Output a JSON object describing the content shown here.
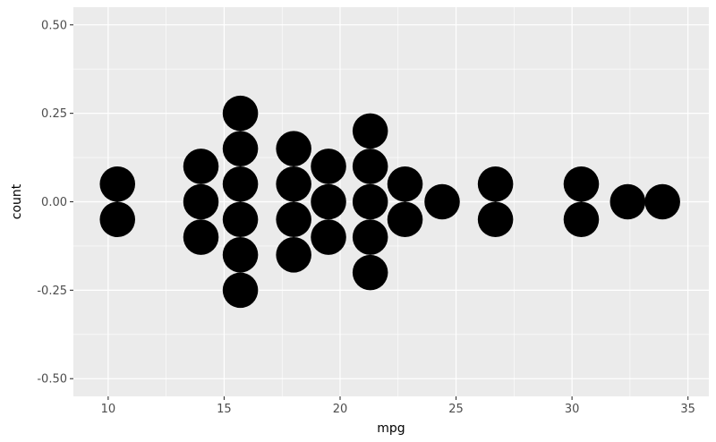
{
  "chart_data": {
    "type": "scatter",
    "subtype": "centered-dotplot",
    "title": "",
    "xlabel": "mpg",
    "ylabel": "count",
    "xlim": [
      8.5,
      35.9
    ],
    "ylim": [
      -0.55,
      0.55
    ],
    "x_ticks": [
      10,
      15,
      20,
      25,
      30,
      35
    ],
    "x_tick_labels": [
      "10",
      "15",
      "20",
      "25",
      "30",
      "35"
    ],
    "y_ticks": [
      -0.5,
      -0.25,
      0,
      0.25,
      0.5
    ],
    "y_tick_labels": [
      "-0.50",
      "-0.25",
      "0.00",
      "0.25",
      "0.50"
    ],
    "grid": true,
    "legend": "none",
    "colors": {
      "panel": "#ebebeb",
      "grid": "#ffffff",
      "dot": "#000000",
      "tick_text": "#4d4d4d"
    },
    "stacks": [
      {
        "x": 10.4,
        "count": 2
      },
      {
        "x": 14.0,
        "count": 3
      },
      {
        "x": 15.7,
        "count": 6
      },
      {
        "x": 18.0,
        "count": 4
      },
      {
        "x": 19.5,
        "count": 3
      },
      {
        "x": 21.3,
        "count": 5
      },
      {
        "x": 22.8,
        "count": 2
      },
      {
        "x": 24.4,
        "count": 1
      },
      {
        "x": 26.7,
        "count": 2
      },
      {
        "x": 30.4,
        "count": 2
      },
      {
        "x": 32.4,
        "count": 1
      },
      {
        "x": 33.9,
        "count": 1
      }
    ]
  }
}
